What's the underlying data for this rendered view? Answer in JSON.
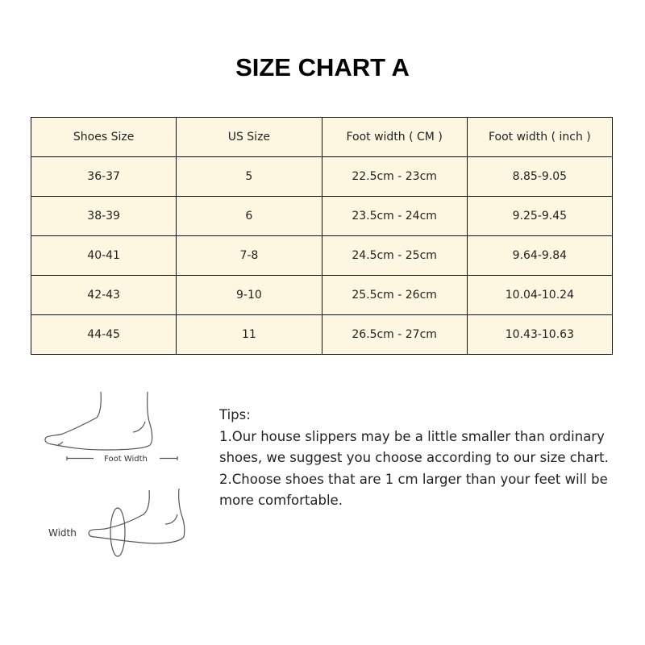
{
  "title": "SIZE CHART A",
  "table": {
    "headers": [
      "Shoes Size",
      "US Size",
      "Foot width ( CM )",
      "Foot width ( inch )"
    ],
    "rows": [
      [
        "36-37",
        "5",
        "22.5cm - 23cm",
        "8.85-9.05"
      ],
      [
        "38-39",
        "6",
        "23.5cm - 24cm",
        "9.25-9.45"
      ],
      [
        "40-41",
        "7-8",
        "24.5cm - 25cm",
        "9.64-9.84"
      ],
      [
        "42-43",
        "9-10",
        "25.5cm - 26cm",
        "10.04-10.24"
      ],
      [
        "44-45",
        "11",
        "26.5cm - 27cm",
        "10.43-10.63"
      ]
    ],
    "background": "#fdf6e0"
  },
  "illustration": {
    "label_top": "Foot Width",
    "label_bottom": "Width"
  },
  "tips": {
    "heading": "Tips:",
    "lines": [
      "1.Our house slippers may be a little smaller than ordinary shoes, we suggest you choose according to our size chart.",
      "2.Choose shoes that are 1 cm larger than your feet will be more comfortable."
    ]
  }
}
